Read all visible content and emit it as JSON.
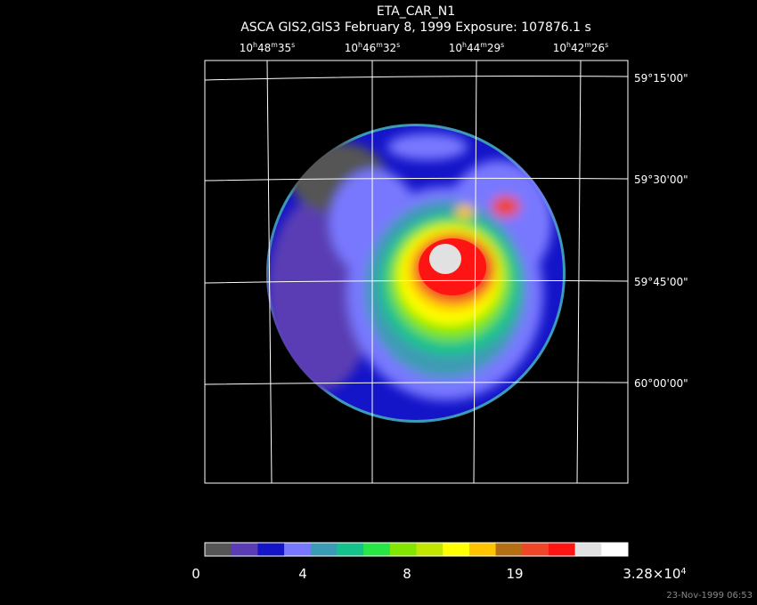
{
  "header": {
    "title": "ETA_CAR_N1",
    "subtitle": "ASCA GIS2,GIS3 February 8, 1999 Exposure: 107876.1 s"
  },
  "ra_labels": [
    [
      "10",
      "h",
      "48",
      "m",
      "35",
      "s"
    ],
    [
      "10",
      "h",
      "46",
      "m",
      "32",
      "s"
    ],
    [
      "10",
      "h",
      "44",
      "m",
      "29",
      "s"
    ],
    [
      "10",
      "h",
      "42",
      "m",
      "26",
      "s"
    ]
  ],
  "dec_labels": [
    "59°15'00\"",
    "59°30'00\"",
    "59°45'00\"",
    "60°00'00\""
  ],
  "colorbar": {
    "colors": [
      "#555555",
      "#5a3cb4",
      "#1414c8",
      "#7878ff",
      "#3c9bb4",
      "#14c38c",
      "#28e646",
      "#82e600",
      "#c3e600",
      "#ffff00",
      "#ffc300",
      "#b46e14",
      "#f04628",
      "#ff1414",
      "#e1e1e1",
      "#ffffff"
    ],
    "labels": [
      [
        "0"
      ],
      [
        "4"
      ],
      [
        "8"
      ],
      [
        "19"
      ],
      [
        "3.28×10",
        "4"
      ]
    ]
  },
  "footer": {
    "timestamp": "23-Nov-1999 06:53"
  }
}
